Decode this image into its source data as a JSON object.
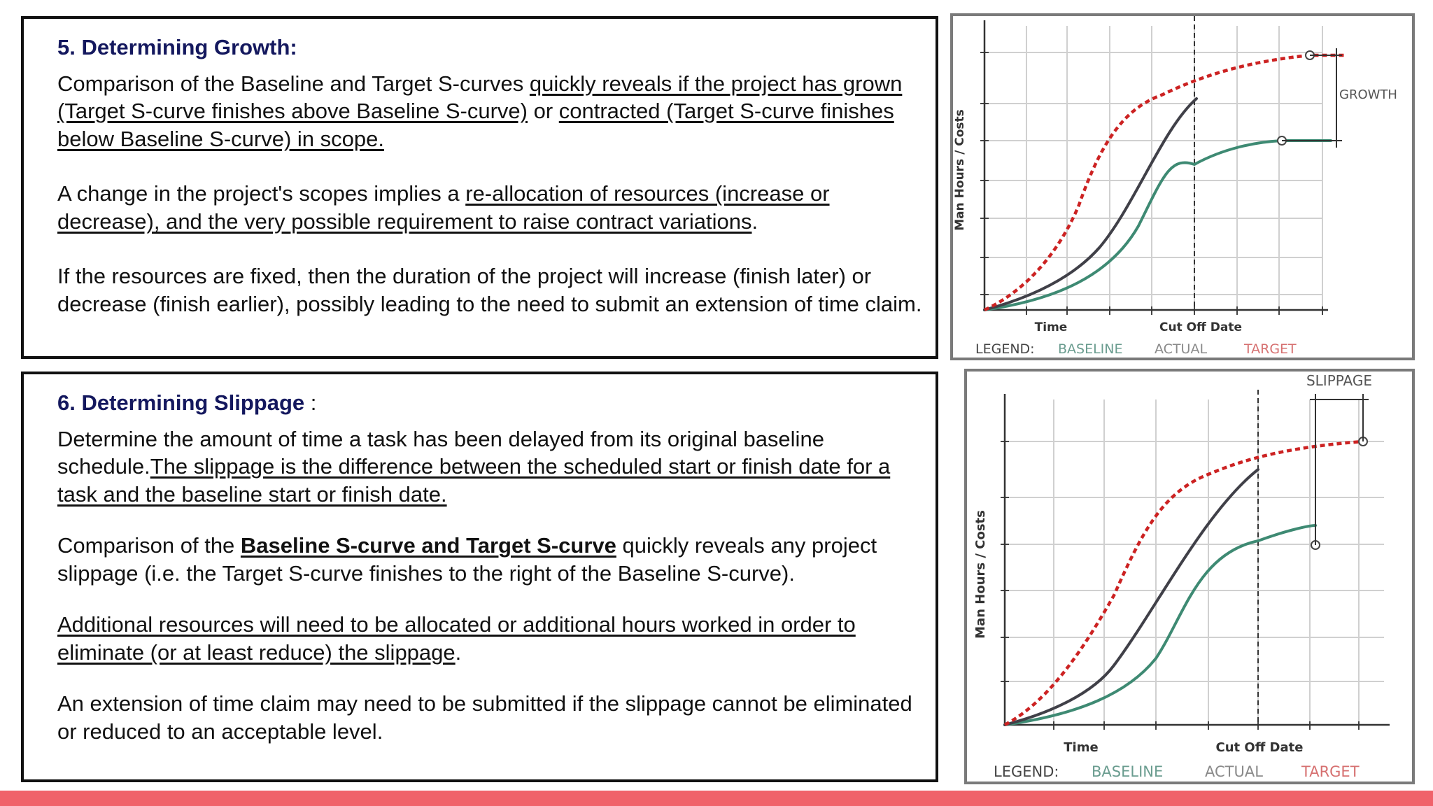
{
  "section1": {
    "title": "5. Determining Growth:",
    "p1": {
      "t1": "Comparison of the Baseline and Target S-curves ",
      "u1": "quickly reveals if the project has grown (Target S-curve finishes above Baseline S-curve)",
      "t2": " or ",
      "u2": "contracted (Target S-curve finishes below Baseline S-curve) in scope."
    },
    "p2": {
      "t1": "A change in the project's scopes implies a ",
      "u1": "re-allocation of resources (increase or decrease), and the very possible requirement to raise contract variations",
      "t2": "."
    },
    "p3": "If the resources are fixed, then the duration of the project will increase (finish later) or decrease (finish earlier), possibly leading to the need to submit an extension of time claim."
  },
  "section2": {
    "title": "6. Determining Slippage",
    "title_suffix": " :",
    "p1": {
      "t1": "Determine  the amount of time a task has been delayed from its original baseline schedule.",
      "u1": "The slippage is the difference between the scheduled start or finish date for a task and the baseline start or finish date."
    },
    "p2": {
      "t1": "Comparison of the ",
      "b1": "Baseline S-curve and Target S-curve",
      "t2": " quickly reveals any project slippage (i.e. the Target S-curve finishes to the right of the Baseline S-curve)."
    },
    "p3": {
      "u1": "Additional resources will need to be allocated or additional hours worked in order to eliminate (or at least reduce) the slippage",
      "t1": "."
    },
    "p4": "An extension of time claim may need to be submitted if the slippage cannot be eliminated or reduced to an acceptable level."
  },
  "chart_data": [
    {
      "type": "line",
      "ylabel": "Man Hours / Costs",
      "xlabel": "Time",
      "marker_label": "Cut Off Date",
      "annotation": "GROWTH",
      "legend_title": "LEGEND:",
      "legend": [
        "BASELINE",
        "ACTUAL",
        "TARGET"
      ],
      "grid": true,
      "colors": {
        "baseline": "#3e8a73",
        "actual": "#404048",
        "target": "#cc2222",
        "legend_baseline": "#6a9c8f",
        "legend_actual": "#8a8a8a",
        "legend_target": "#d67070"
      }
    },
    {
      "type": "line",
      "ylabel": "Man Hours / Costs",
      "xlabel": "Time",
      "marker_label": "Cut Off Date",
      "annotation": "SLIPPAGE",
      "legend_title": "LEGEND:",
      "legend": [
        "BASELINE",
        "ACTUAL",
        "TARGET"
      ],
      "grid": true,
      "colors": {
        "baseline": "#3e8a73",
        "actual": "#404048",
        "target": "#cc2222",
        "legend_baseline": "#6a9c8f",
        "legend_actual": "#8a8a8a",
        "legend_target": "#d67070"
      }
    }
  ]
}
